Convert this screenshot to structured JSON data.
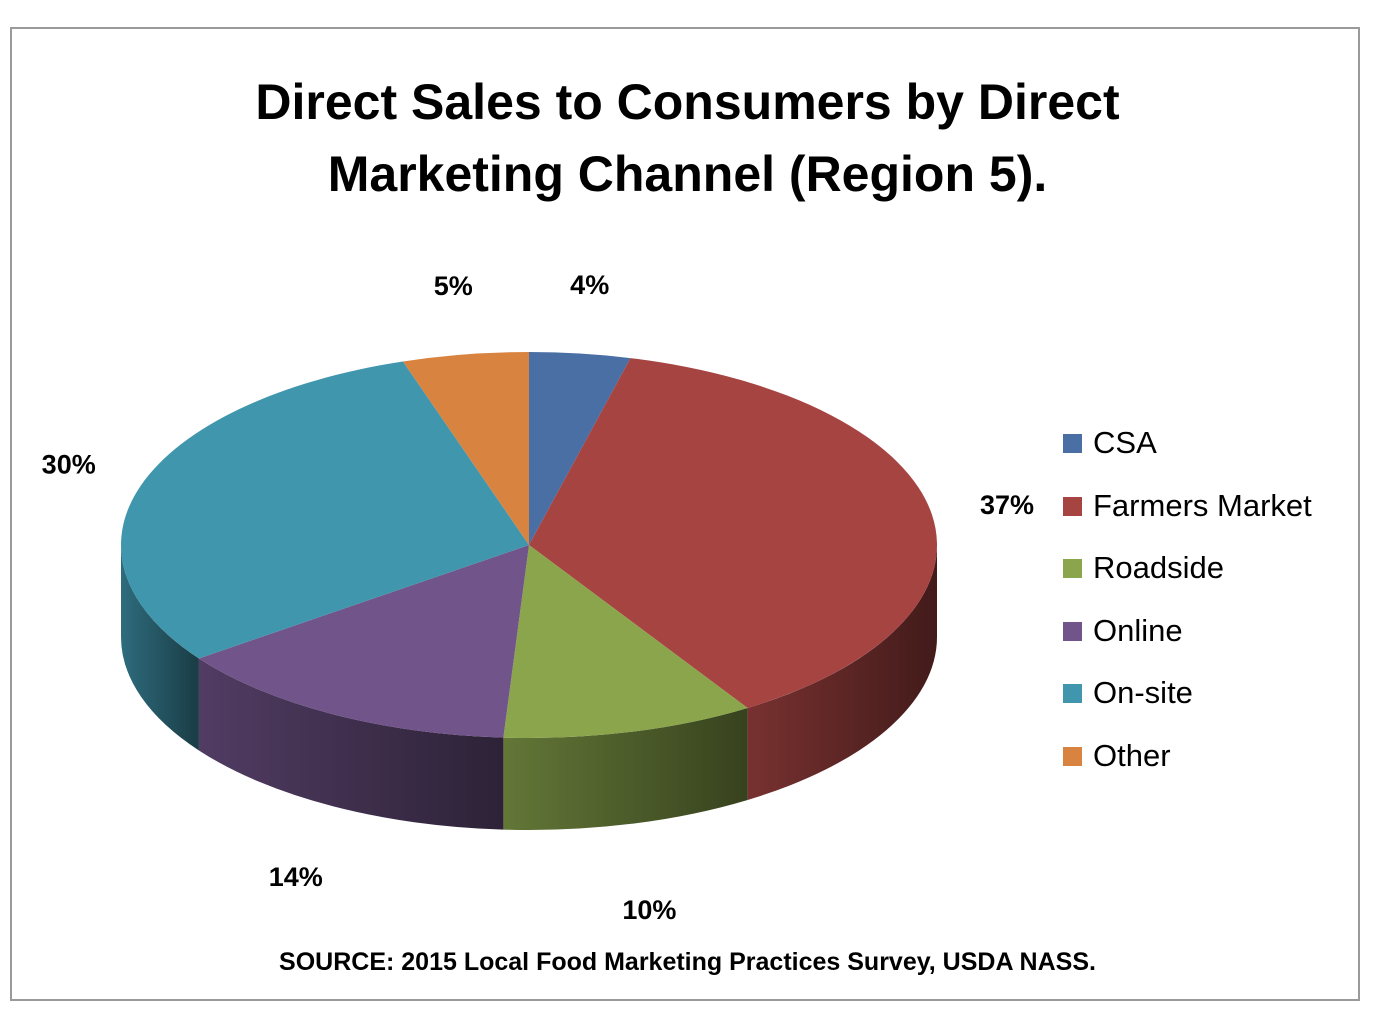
{
  "chart_data": {
    "type": "pie",
    "title_lines": [
      "Direct Sales to Consumers by Direct",
      "Marketing Channel (Region 5)."
    ],
    "source": "SOURCE:  2015 Local Food Marketing Practices Survey, USDA NASS.",
    "legend_position": "right",
    "slices": [
      {
        "label": "CSA",
        "value": 4,
        "value_label": "4%",
        "color": "#4a6fa5"
      },
      {
        "label": "Farmers Market",
        "value": 37,
        "value_label": "37%",
        "color": "#a64442"
      },
      {
        "label": "Roadside",
        "value": 10,
        "value_label": "10%",
        "color": "#8aa54c"
      },
      {
        "label": "Online",
        "value": 14,
        "value_label": "14%",
        "color": "#715489"
      },
      {
        "label": "On-site",
        "value": 30,
        "value_label": "30%",
        "color": "#4096ad"
      },
      {
        "label": "Other",
        "value": 5,
        "value_label": "5%",
        "color": "#d98340"
      }
    ]
  }
}
